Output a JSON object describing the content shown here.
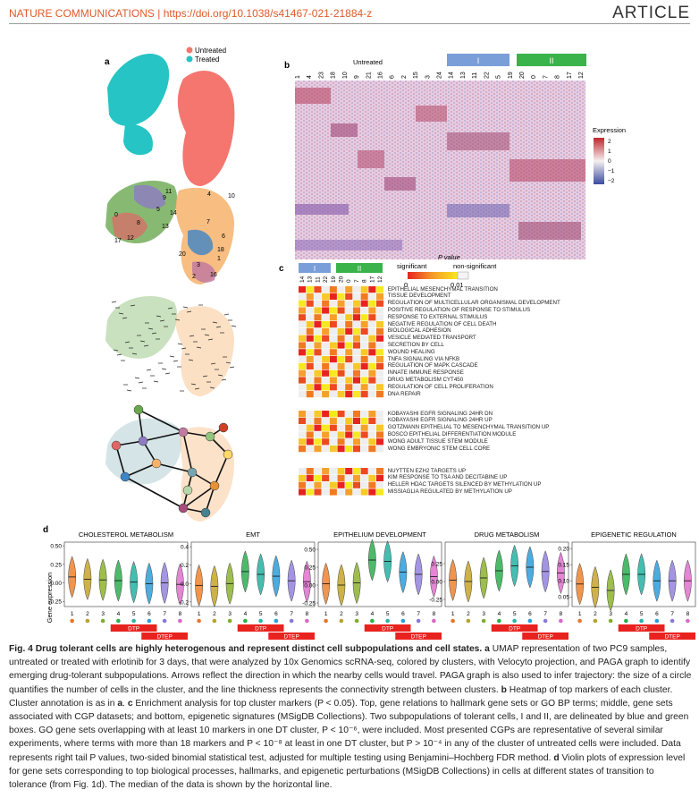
{
  "header": {
    "journal": "NATURE COMMUNICATIONS",
    "doi": "https://doi.org/10.1038/s41467-021-21884-z",
    "article": "ARTICLE"
  },
  "panels": {
    "a": "a",
    "b": "b",
    "c": "c",
    "d": "d"
  },
  "panel_a": {
    "legend": [
      {
        "label": "Untreated",
        "color": "#f4766f"
      },
      {
        "label": "Treated",
        "color": "#26c4c4"
      }
    ],
    "cluster_labels": [
      "11",
      "4",
      "10",
      "14",
      "9",
      "5",
      "0",
      "8",
      "13",
      "12",
      "17",
      "7",
      "6",
      "18",
      "1",
      "20",
      "3",
      "2",
      "16"
    ]
  },
  "panel_b": {
    "top_group_label": "Untreated",
    "group_labels": [
      "I",
      "II"
    ],
    "group_colors": [
      "#7a9fd8",
      "#3ab34a"
    ],
    "cluster_ticks": [
      "1",
      "4",
      "23",
      "18",
      "10",
      "9",
      "21",
      "16",
      "6",
      "2",
      "15",
      "3",
      "24",
      "14",
      "13",
      "11",
      "22",
      "5",
      "19",
      "20",
      "0",
      "7",
      "8",
      "17",
      "12"
    ],
    "legend_title": "Expression",
    "legend_ticks": [
      "2",
      "1",
      "0",
      "−1",
      "−2"
    ]
  },
  "panel_c": {
    "pvalue_title": "P value",
    "pvalue_sig": "significant",
    "pvalue_nonsig": "non-significant",
    "pvalue_ticks": [
      "0",
      "0.01"
    ],
    "group_labels": [
      "I",
      "II"
    ],
    "column_ticks": [
      "14",
      "13",
      "11",
      "22",
      "19",
      "20",
      "0",
      "7",
      "8",
      "17",
      "12"
    ],
    "hallmark_go": [
      "EPITHELIAL MESENCHYMAL TRANSITION",
      "TISSUE DEVELOPMENT",
      "REGULATION OF MULTICELLULAR ORGANISMAL DEVELOPMENT",
      "POSITIVE REGULATION OF RESPONSE TO STIMULUS",
      "RESPONSE TO EXTERNAL STIMULUS",
      "NEGATIVE REGULATION OF CELL DEATH",
      "BIOLOGICAL ADHESION",
      "VESICLE MEDIATED TRANSPORT",
      "SECRETION BY CELL",
      "WOUND HEALING",
      "TNFA SIGNALING VIA NFKB",
      "REGULATION OF MAPK CASCADE",
      "INNATE IMMUNE RESPONSE",
      "DRUG METABOLISM CYT450",
      "REGULATION OF CELL PROLIFERATION",
      "DNA REPAIR"
    ],
    "cgp": [
      "KOBAYASHI EGFR SIGNALING 24HR DN",
      "KOBAYASHI EGFR SIGNALING 24HR UP",
      "GOTZMANN EPITHELIAL TO MESENCHYMAL TRANSITION UP",
      "BOSCO EPITHELIAL DIFFERENTIATION MODULE",
      "WONG ADULT TISSUE STEM MODULE",
      "WONG EMBRYONIC STEM CELL CORE"
    ],
    "epigenetic": [
      "NUYTTEN EZH2 TARGETS UP",
      "KIM RESPONSE TO TSA AND DECITABINE UP",
      "HELLER HDAC TARGETS SILENCED BY METHYLATION UP",
      "MISSIAGLIA REGULATED BY METHYLATION UP"
    ]
  },
  "panel_d": {
    "ylabel": "Gene expression",
    "x_ticks": [
      "1",
      "2",
      "3",
      "4",
      "5",
      "6",
      "7",
      "8"
    ],
    "dot_colors": [
      "#e8762a",
      "#b8a32a",
      "#7fae2a",
      "#2ab04a",
      "#2ab5a8",
      "#2a9ed8",
      "#8a7ad8",
      "#d86ac8"
    ],
    "dtp_label": "DTP",
    "dtep_label": "DTEP",
    "plots": [
      {
        "title": "CHOLESTEROL METABOLISM",
        "yticks": [
          "0.50",
          "0.25",
          "0.00",
          "-0.25"
        ],
        "ymin": -0.32,
        "ymax": 0.55,
        "medians": [
          0.08,
          0.05,
          0.04,
          0.03,
          0.01,
          -0.01,
          0.0,
          -0.02
        ]
      },
      {
        "title": "EMT",
        "yticks": [
          "0.4",
          "0.2",
          "0.0",
          "-0.2"
        ],
        "ymin": -0.25,
        "ymax": 0.45,
        "medians": [
          -0.02,
          -0.03,
          0.0,
          0.13,
          0.1,
          0.08,
          0.03,
          0.02
        ]
      },
      {
        "title": "EPITHELIUM DEVELOPMENT",
        "yticks": [
          "0.50",
          "0.25",
          "0.00",
          "-0.25"
        ],
        "ymin": -0.3,
        "ymax": 0.6,
        "medians": [
          0.02,
          0.0,
          0.03,
          0.35,
          0.33,
          0.18,
          0.15,
          0.12
        ]
      },
      {
        "title": "DRUG METABOLISM",
        "yticks": [
          "0.25",
          "0.00",
          "-0.25"
        ],
        "ymin": -0.35,
        "ymax": 0.55,
        "medians": [
          0.02,
          0.0,
          0.05,
          0.15,
          0.22,
          0.2,
          0.14,
          0.12
        ]
      },
      {
        "title": "EPIGENETIC REGULATION",
        "yticks": [
          "0.20",
          "0.15",
          "0.10",
          "0.05"
        ],
        "ymin": 0.02,
        "ymax": 0.22,
        "medians": [
          0.09,
          0.08,
          0.07,
          0.12,
          0.12,
          0.1,
          0.1,
          0.1
        ]
      }
    ]
  },
  "caption": {
    "bold": "Fig. 4 Drug tolerant cells are highly heterogenous and represent distinct cell subpopulations and cell states.",
    "part_a": " a",
    "text1": " UMAP representation of two PC9 samples, untreated or treated with erlotinib for 3 days, that were analyzed by 10x Genomics scRNA-seq, colored by clusters, with Velocyto projection, and PAGA graph to identify emerging drug-tolerant subpopulations. Arrows reflect the direction in which the nearby cells would travel. PAGA graph is also used to infer trajectory: the size of a circle quantifies the number of cells in the cluster, and the line thickness represents the connectivity strength between clusters.",
    "part_b": " b",
    "text2": " Heatmap of top markers of each cluster. Cluster annotation is as in",
    "ref_a": " a",
    "text2b": ".",
    "part_c": " c",
    "text3": " Enrichment analysis for top cluster markers (P < 0.05). Top, gene relations to hallmark gene sets or GO BP terms; middle, gene sets associated with CGP datasets; and bottom, epigenetic signatures (MSigDB Collections). Two subpopulations of tolerant cells, I and II, are delineated by blue and green boxes. GO gene sets overlapping with at least 10 markers in one DT cluster, P < 10⁻⁶, were included. Most presented CGPs are representative of several similar experiments, where terms with more than 18 markers and P < 10⁻⁸ at least in one DT cluster, but P > 10⁻⁴ in any of the cluster of untreated cells were included. Data represents right tail P values, two-sided binomial statistical test, adjusted for multiple testing using Benjamini–Hochberg FDR method.",
    "part_d": " d",
    "text4": " Violin plots of expression level for gene sets corresponding to top biological processes, hallmarks, and epigenetic perturbations (MSigDB Collections) in cells at different states of transition to tolerance (from Fig. 1d). The median of the data is shown by the horizontal line."
  }
}
